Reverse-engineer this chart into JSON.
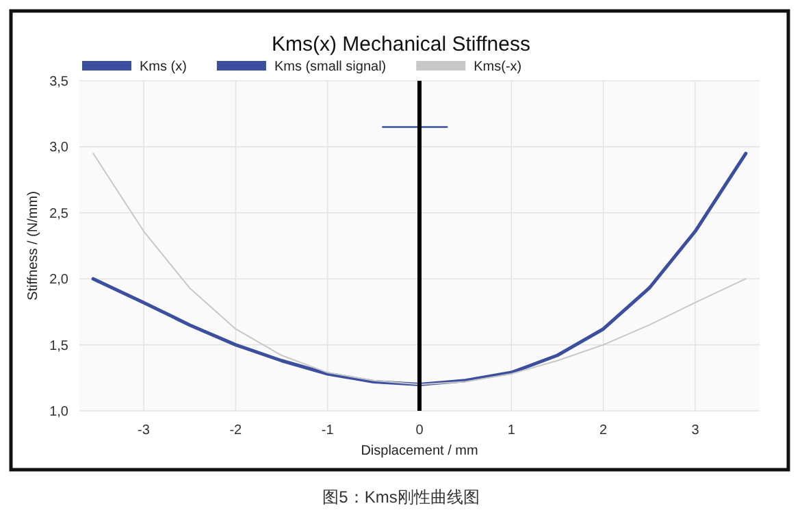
{
  "chart_data": {
    "type": "line",
    "title": "Kms(x) Mechanical Stiffness",
    "xlabel": "Displacement / mm",
    "ylabel": "Stiffness / (N/mm)",
    "xlim": [
      -3.7,
      3.7
    ],
    "xticks": [
      -3,
      -2,
      -1,
      0,
      1,
      2,
      3
    ],
    "ylim": [
      1.0,
      3.5
    ],
    "yticks": [
      {
        "value": 1.0,
        "label": "1,0"
      },
      {
        "value": 1.5,
        "label": "1,5"
      },
      {
        "value": 2.0,
        "label": "2,0"
      },
      {
        "value": 2.5,
        "label": "2,5"
      },
      {
        "value": 3.0,
        "label": "3,0"
      },
      {
        "value": 3.5,
        "label": "3,5"
      }
    ],
    "grid": true,
    "legend": "top",
    "series": [
      {
        "name": "Kms (x)",
        "color": "#3b4f9e",
        "x": [
          -3.55,
          -3,
          -2.5,
          -2,
          -1.5,
          -1,
          -0.5,
          0,
          0.5,
          1,
          1.5,
          2,
          2.5,
          3,
          3.55
        ],
        "values": [
          2.0,
          1.82,
          1.65,
          1.5,
          1.38,
          1.28,
          1.22,
          1.2,
          1.23,
          1.29,
          1.42,
          1.62,
          1.93,
          2.36,
          2.95
        ]
      },
      {
        "name": "Kms (small signal)",
        "color": "#3b4f9e",
        "x": [
          -0.4,
          0.3
        ],
        "values": [
          3.15,
          3.15
        ]
      },
      {
        "name": "Kms(-x)",
        "color": "#c8c8c8",
        "x": [
          -3.55,
          -3,
          -2.5,
          -2,
          -1.5,
          -1,
          -0.5,
          0,
          0.5,
          1,
          1.5,
          2,
          2.5,
          3,
          3.55
        ],
        "values": [
          2.95,
          2.36,
          1.93,
          1.62,
          1.42,
          1.29,
          1.23,
          1.2,
          1.22,
          1.28,
          1.38,
          1.5,
          1.65,
          1.82,
          2.0
        ]
      }
    ],
    "ref_lines": [
      {
        "axis": "x",
        "value": 0,
        "color": "#000000"
      }
    ],
    "annotations": [
      "图5：Kms刚性曲线图"
    ]
  }
}
